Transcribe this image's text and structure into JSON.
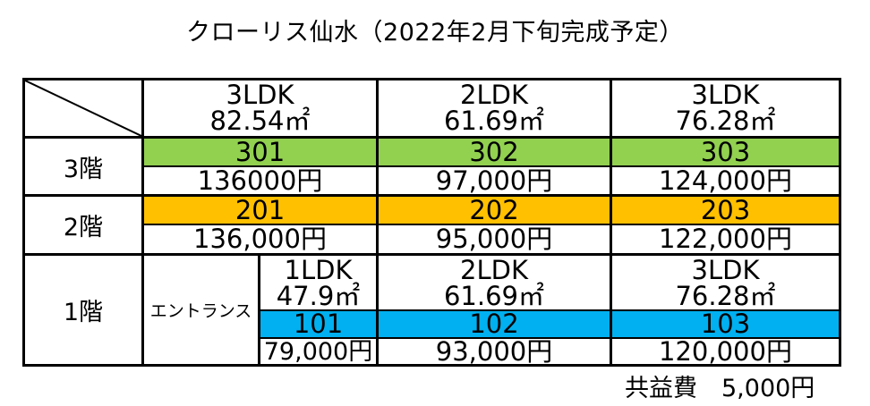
{
  "title": "クローリス仙水（2022年2月下旬完成予定）",
  "colors": {
    "floor3": "#92d050",
    "floor2": "#ffc000",
    "floor1": "#00b0f0"
  },
  "header": [
    {
      "type": "3LDK",
      "area": "82.54㎡"
    },
    {
      "type": "2LDK",
      "area": "61.69㎡"
    },
    {
      "type": "3LDK",
      "area": "76.28㎡"
    }
  ],
  "floor3": {
    "label": "3階",
    "units": [
      {
        "room": "301",
        "rent": "136000円"
      },
      {
        "room": "302",
        "rent": "97,000円"
      },
      {
        "room": "303",
        "rent": "124,000円"
      }
    ]
  },
  "floor2": {
    "label": "2階",
    "units": [
      {
        "room": "201",
        "rent": "136,000円"
      },
      {
        "room": "202",
        "rent": "95,000円"
      },
      {
        "room": "203",
        "rent": "122,000円"
      }
    ]
  },
  "floor1": {
    "label": "1階",
    "entrance": "エントランス",
    "types": [
      {
        "type": "1LDK",
        "area": "47.9㎡"
      },
      {
        "type": "2LDK",
        "area": "61.69㎡"
      },
      {
        "type": "3LDK",
        "area": "76.28㎡"
      }
    ],
    "units": [
      {
        "room": "101",
        "rent": "79,000円"
      },
      {
        "room": "102",
        "rent": "93,000円"
      },
      {
        "room": "103",
        "rent": "120,000円"
      }
    ]
  },
  "common_fee": "共益費　5,000円"
}
